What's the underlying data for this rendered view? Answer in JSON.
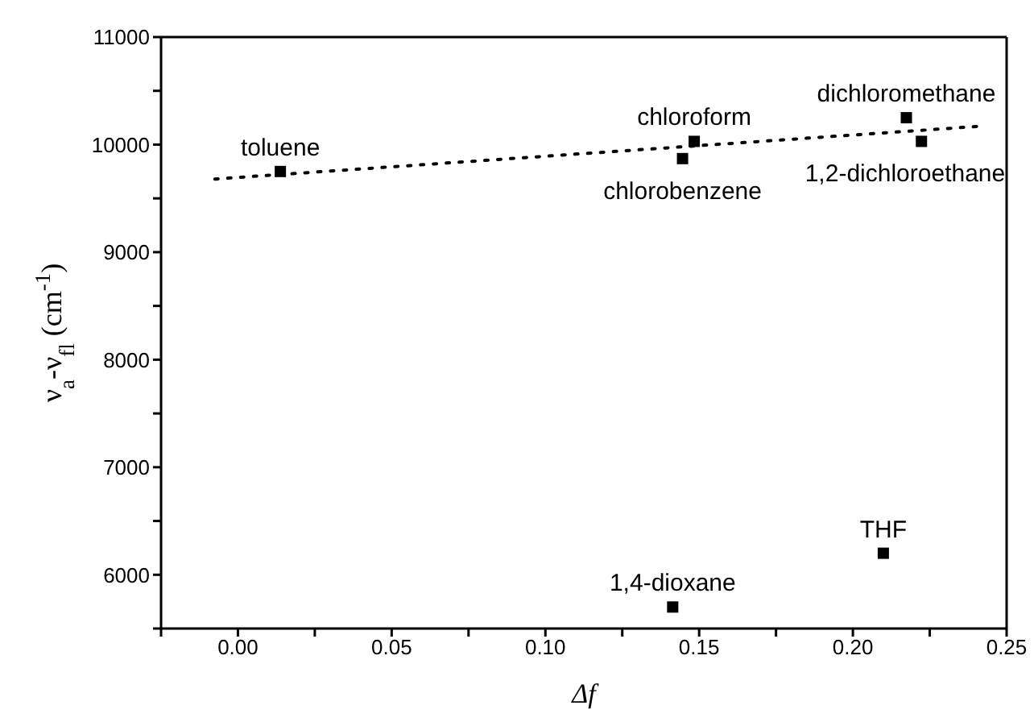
{
  "chart_data": {
    "type": "scatter",
    "xlabel": "Δf",
    "ylabel": "ν$_{a}$-ν$_{fl}$ (cm$^{-1}$)",
    "xlim": [
      -0.025,
      0.25
    ],
    "xticks": [
      {
        "value": -0.025,
        "label": null
      },
      {
        "value": 0,
        "label": "0.00"
      },
      {
        "value": 0.025,
        "label": null
      },
      {
        "value": 0.05,
        "label": "0.05"
      },
      {
        "value": 0.075,
        "label": null
      },
      {
        "value": 0.1,
        "label": "0.10"
      },
      {
        "value": 0.125,
        "label": null
      },
      {
        "value": 0.15,
        "label": "0.15"
      },
      {
        "value": 0.175,
        "label": null
      },
      {
        "value": 0.2,
        "label": "0.20"
      },
      {
        "value": 0.225,
        "label": null
      },
      {
        "value": 0.25,
        "label": "0.25"
      }
    ],
    "ylim": [
      5500,
      11000
    ],
    "yticks": [
      {
        "value": 5500,
        "label": null
      },
      6000,
      {
        "value": 6500,
        "label": null
      },
      7000,
      {
        "value": 7500,
        "label": null
      },
      8000,
      {
        "value": 8500,
        "label": null
      },
      9000,
      {
        "value": 9500,
        "label": null
      },
      10000,
      {
        "value": 10500,
        "label": null
      },
      11000
    ],
    "series": [
      {
        "color": "#000000",
        "marker": "square",
        "x": [
          0.0138,
          0.1484,
          0.1446,
          0.2174,
          0.2223,
          0.1414,
          0.2099
        ],
        "values": [
          9750,
          10030,
          9870,
          10250,
          10030,
          5700,
          6200
        ]
      },
      {
        "type": "line",
        "color": "#000000",
        "marker": "none",
        "line_style": "dotted",
        "x": [
          -0.0075,
          0.241
        ],
        "values": [
          9680,
          10170
        ]
      }
    ],
    "annotations": [
      {
        "text": "toluene",
        "x": 0.0138,
        "y": 9750
      },
      {
        "text": "chloroform",
        "x": 0.1484,
        "y": 10030
      },
      {
        "text": "chlorobenzene",
        "x": 0.1446,
        "y": 9870
      },
      {
        "text": "dichloromethane",
        "x": 0.2174,
        "y": 10250
      },
      {
        "text": "1,2-dichloroethane",
        "x": 0.2223,
        "y": 10030
      },
      {
        "text": "1,4-dioxane",
        "x": 0.1414,
        "y": 5700
      },
      {
        "text": "THF",
        "x": 0.2099,
        "y": 6200
      }
    ]
  }
}
